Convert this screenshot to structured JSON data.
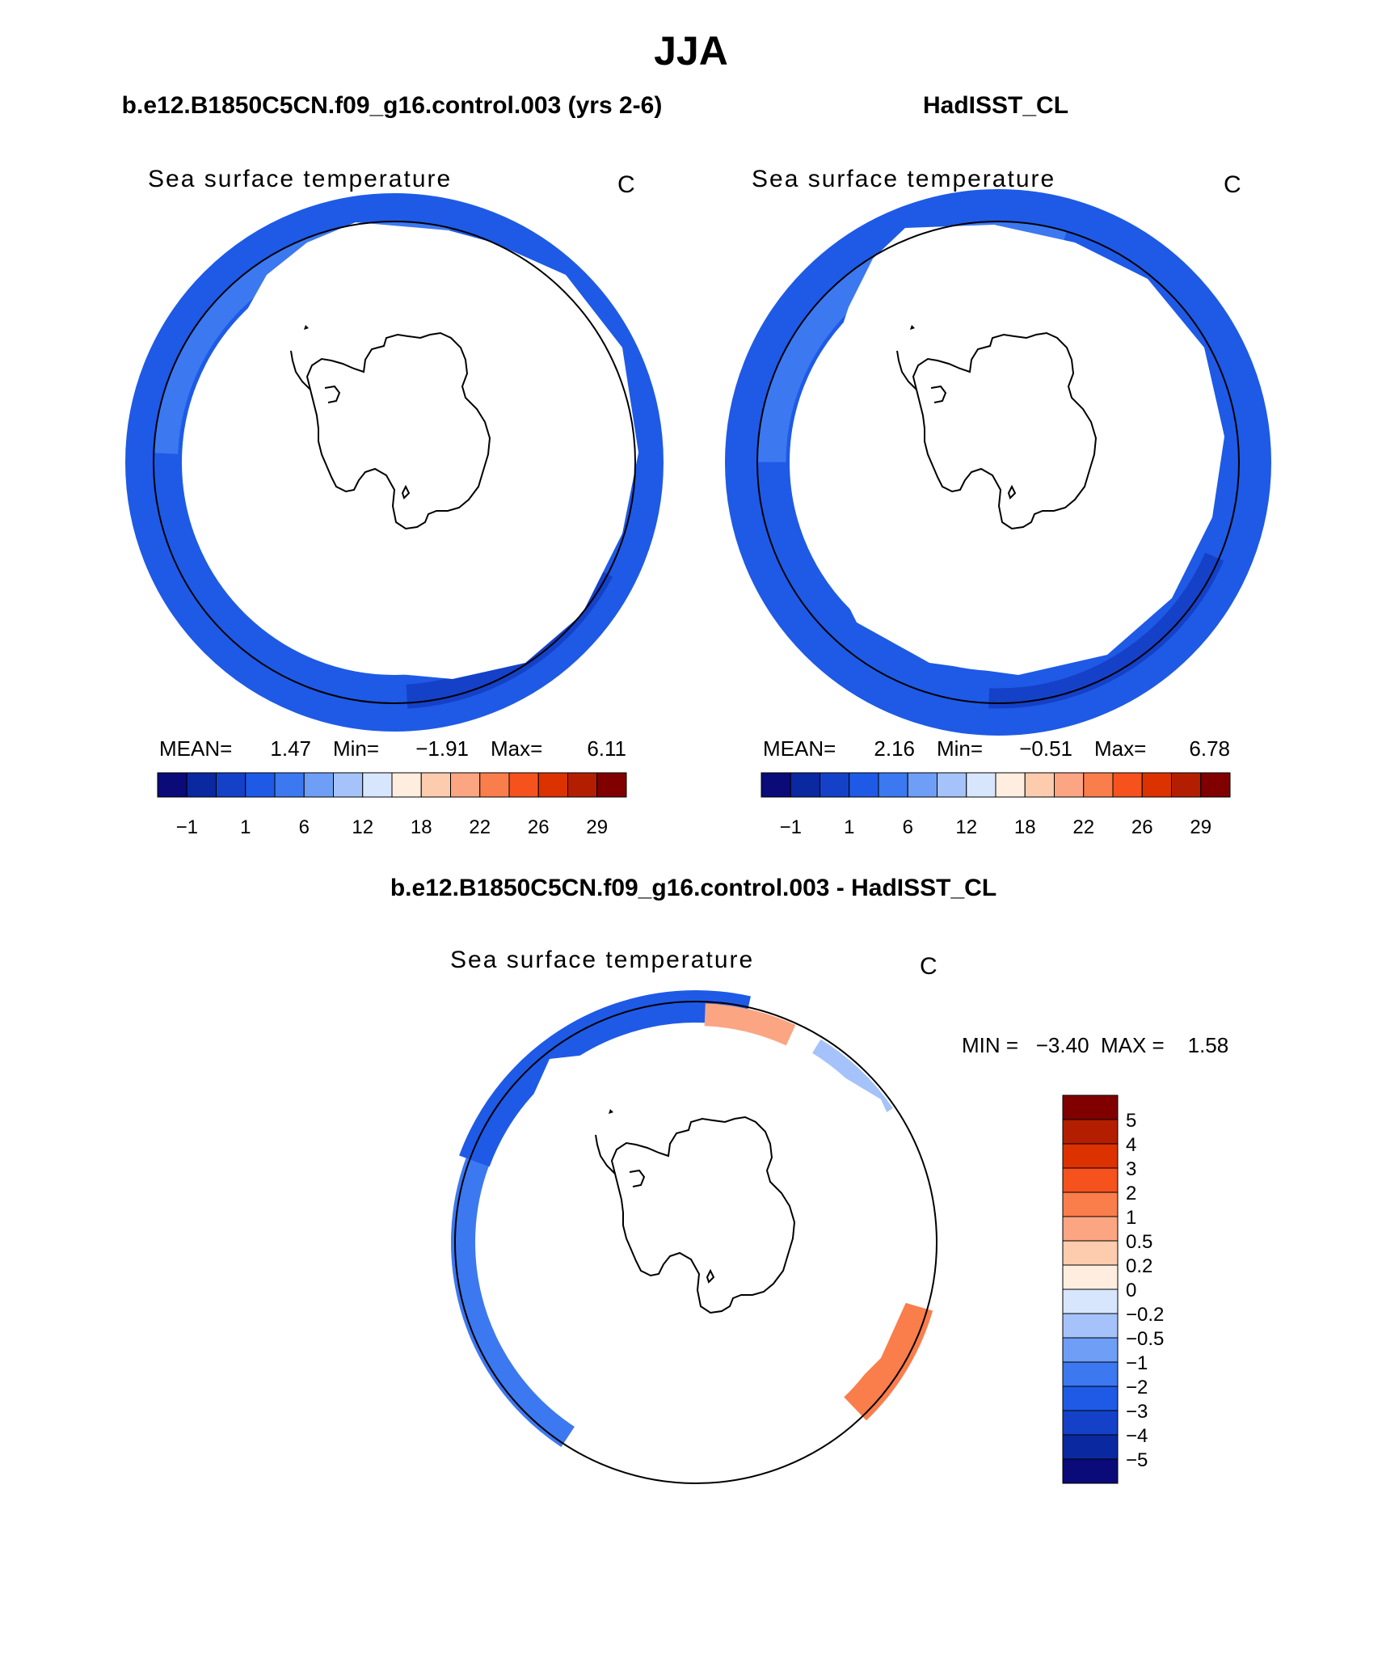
{
  "season": "JJA",
  "panels": {
    "model": {
      "case_title": "b.e12.B1850C5CN.f09_g16.control.003 (yrs 2-6)",
      "var_title": "Sea surface temperature",
      "units": "C",
      "stats": {
        "mean_label": "MEAN=",
        "mean": "1.47",
        "min_label": "Min=",
        "min": "−1.91",
        "max_label": "Max=",
        "max": "6.11"
      }
    },
    "obs": {
      "case_title": "HadISST_CL",
      "var_title": "Sea surface temperature",
      "units": "C",
      "stats": {
        "mean_label": "MEAN=",
        "mean": "2.16",
        "min_label": "Min=",
        "min": "−0.51",
        "max_label": "Max=",
        "max": "6.78"
      }
    },
    "diff": {
      "case_title": "b.e12.B1850C5CN.f09_g16.control.003 - HadISST_CL",
      "var_title": "Sea surface temperature",
      "units": "C",
      "minmax": "MIN =   −3.40  MAX =    1.58"
    }
  },
  "colorbar_main": {
    "colors": [
      "#0a0a78",
      "#0a28a0",
      "#1441c8",
      "#1e5ae6",
      "#3c78f0",
      "#6e9ef5",
      "#a5c3fa",
      "#d7e6fd",
      "#ffeedf",
      "#fdcbad",
      "#fba583",
      "#fa7d4c",
      "#f5521e",
      "#dc3200",
      "#b41e00",
      "#800000"
    ],
    "tick_labels": [
      "−1",
      "1",
      "6",
      "12",
      "18",
      "22",
      "26",
      "29"
    ]
  },
  "colorbar_diff": {
    "colors": [
      "#800000",
      "#b41e00",
      "#dc3200",
      "#f5521e",
      "#fa7d4c",
      "#fba583",
      "#fdcbad",
      "#ffeedf",
      "#d7e6fd",
      "#a5c3fa",
      "#6e9ef5",
      "#3c78f0",
      "#1e5ae6",
      "#1441c8",
      "#0a28a0",
      "#0a0a78"
    ],
    "tick_labels": [
      "5",
      "4",
      "3",
      "2",
      "1",
      "0.5",
      "0.2",
      "0",
      "−0.2",
      "−0.5",
      "−1",
      "−2",
      "−3",
      "−4",
      "−5"
    ]
  }
}
